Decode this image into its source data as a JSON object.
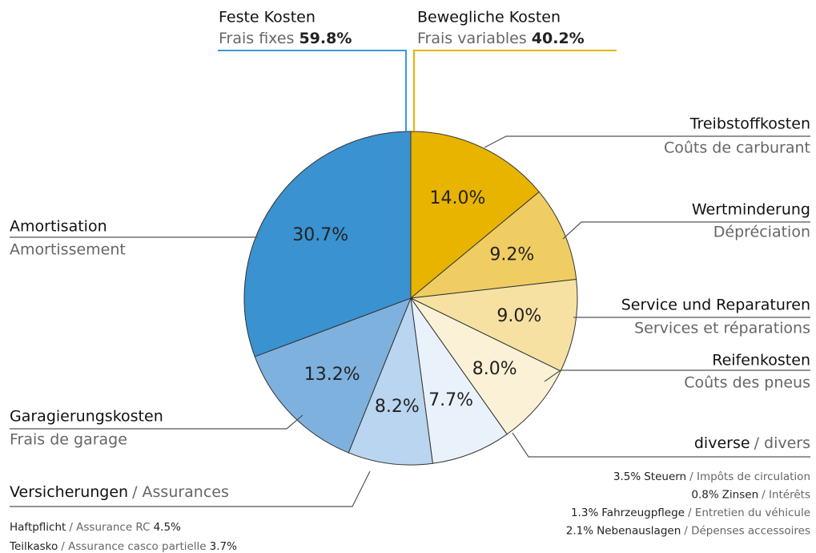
{
  "chart_data": {
    "type": "pie",
    "groups": [
      {
        "de": "Feste Kosten",
        "fr": "Frais fixes",
        "share": "59.8%",
        "color": "#3a9ad9"
      },
      {
        "de": "Bewegliche Kosten",
        "fr": "Frais variables",
        "share": "40.2%",
        "color": "#e8b400"
      }
    ],
    "categories": [
      "Treibstoffkosten",
      "Wertminderung",
      "Service und Reparaturen",
      "Reifenkosten",
      "diverse",
      "Versicherungen",
      "Garagierungskosten",
      "Amortisation"
    ],
    "categories_fr": [
      "Coûts de carburant",
      "Dépréciation",
      "Services et réparations",
      "Coûts des pneus",
      "/ divers",
      "/ Assurances",
      "Frais de garage",
      "Amortissement"
    ],
    "values": [
      14.0,
      9.2,
      9.0,
      8.0,
      7.7,
      8.2,
      13.2,
      30.7
    ],
    "value_labels": [
      "14.0%",
      "9.2%",
      "9.0%",
      "8.0%",
      "7.7%",
      "8.2%",
      "13.2%",
      "30.7%"
    ],
    "colors": [
      "#e8b400",
      "#f0cd62",
      "#f6e1a3",
      "#fbf1d6",
      "#e9f1fa",
      "#b9d5ef",
      "#7fb1de",
      "#3a92d0"
    ],
    "diverse_items": [
      {
        "share": "3.5%",
        "de": "Steuern",
        "fr": "/ Impôts de circulation"
      },
      {
        "share": "0.8%",
        "de": "Zinsen",
        "fr": "/ Intérêts"
      },
      {
        "share": "1.3%",
        "de": "Fahrzeugpflege",
        "fr": "/ Entretien du véhicule"
      },
      {
        "share": "2.1%",
        "de": "Nebenauslagen",
        "fr": "/ Dépenses accessoires"
      }
    ],
    "insurance_items": [
      {
        "de": "Haftpflicht",
        "fr": "/ Assurance RC",
        "share": "4.5%"
      },
      {
        "de": "Teilkasko",
        "fr": "/ Assurance casco partielle",
        "share": "3.7%"
      }
    ]
  }
}
